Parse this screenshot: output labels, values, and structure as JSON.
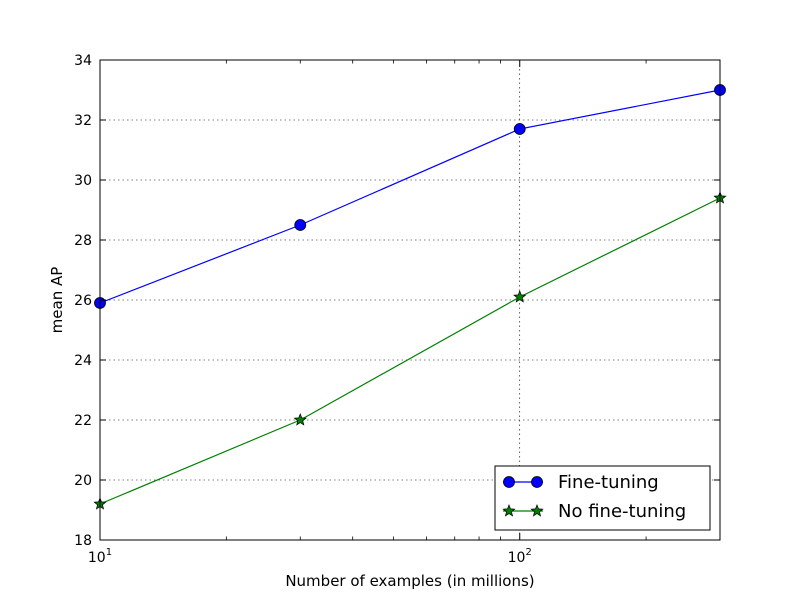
{
  "chart_data": {
    "type": "line",
    "xlabel": "Number of examples (in millions)",
    "ylabel": "mean AP",
    "x_scale": "log",
    "xlim": [
      10,
      300
    ],
    "ylim": [
      18,
      34
    ],
    "x_ticks": [
      {
        "value": 10,
        "base": "10",
        "exp": "1"
      },
      {
        "value": 100,
        "base": "10",
        "exp": "2"
      }
    ],
    "y_ticks": [
      18,
      20,
      22,
      24,
      26,
      28,
      30,
      32,
      34
    ],
    "y_tick_labels": [
      "18",
      "20",
      "22",
      "24",
      "26",
      "28",
      "30",
      "32",
      "34"
    ],
    "grid": true,
    "legend_position": "lower-right",
    "series": [
      {
        "name": "Fine-tuning",
        "color": "#0000ff",
        "marker": "circle",
        "x": [
          10,
          30,
          100,
          300
        ],
        "y": [
          25.9,
          28.5,
          31.7,
          33.0
        ]
      },
      {
        "name": "No fine-tuning",
        "color": "#008000",
        "marker": "star",
        "x": [
          10,
          30,
          100,
          300
        ],
        "y": [
          19.2,
          22.0,
          26.1,
          29.4
        ]
      }
    ]
  }
}
